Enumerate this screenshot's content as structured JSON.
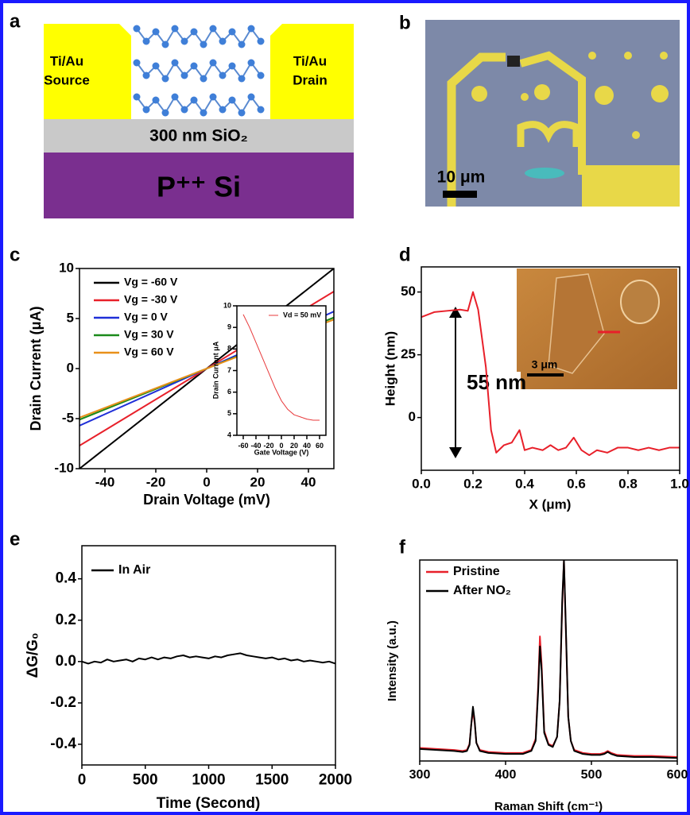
{
  "panels": [
    "a",
    "b",
    "c",
    "d",
    "e",
    "f"
  ],
  "diagram": {
    "source": [
      "Ti/Au",
      "Source"
    ],
    "drain": [
      "Ti/Au",
      "Drain"
    ],
    "oxide": "300 nm SiO₂",
    "substrate": "P⁺⁺ Si"
  },
  "image_b": {
    "scale_bar": "10 μm"
  },
  "chart_data": [
    {
      "type": "line",
      "x_label": "Drain Voltage (mV)",
      "y_label": "Drain Current (μA)",
      "x": [
        -50,
        50
      ],
      "xlim": [
        -50,
        50
      ],
      "ylim": [
        -10,
        10
      ],
      "xticks": [
        -40,
        -20,
        0,
        20,
        40
      ],
      "yticks": [
        -10,
        -5,
        0,
        5,
        10
      ],
      "legend": "upper left",
      "series": [
        {
          "name": "Vg = -60 V",
          "color": "#000000",
          "values": [
            -10,
            10
          ]
        },
        {
          "name": "Vg = -30 V",
          "color": "#e8202a",
          "values": [
            -7.7,
            7.7
          ]
        },
        {
          "name": "Vg = 0 V",
          "color": "#1f2fd8",
          "values": [
            -5.7,
            5.7
          ]
        },
        {
          "name": "Vg = 30 V",
          "color": "#1a8a1a",
          "values": [
            -5.1,
            5.1
          ]
        },
        {
          "name": "Vg = 60 V",
          "color": "#e8901a",
          "values": [
            -4.9,
            4.9
          ]
        }
      ]
    },
    {
      "type": "line",
      "x_label": "Gate Voltage (V)",
      "y_label": "Drain Current μA",
      "x": [
        -60,
        -50,
        -40,
        -30,
        -20,
        -10,
        0,
        10,
        20,
        30,
        40,
        50,
        60
      ],
      "xlim": [
        -70,
        70
      ],
      "ylim": [
        4,
        10
      ],
      "xticks": [
        -60,
        -40,
        -20,
        0,
        20,
        40,
        60
      ],
      "yticks": [
        4,
        5,
        6,
        7,
        8,
        9,
        10
      ],
      "legend": "upper right",
      "series": [
        {
          "name": "Vd = 50 mV",
          "color": "#e8393b",
          "values": [
            9.6,
            9.0,
            8.3,
            7.6,
            6.9,
            6.2,
            5.6,
            5.2,
            4.95,
            4.85,
            4.75,
            4.7,
            4.7
          ]
        }
      ]
    },
    {
      "type": "line",
      "x_label": "X (μm)",
      "y_label": "Height (nm)",
      "x": [
        0,
        0.05,
        0.1,
        0.15,
        0.18,
        0.2,
        0.22,
        0.25,
        0.27,
        0.29,
        0.32,
        0.35,
        0.38,
        0.4,
        0.43,
        0.47,
        0.5,
        0.53,
        0.56,
        0.59,
        0.62,
        0.65,
        0.68,
        0.72,
        0.76,
        0.8,
        0.84,
        0.88,
        0.92,
        0.96,
        1.0
      ],
      "xlim": [
        0,
        1
      ],
      "ylim": [
        -21,
        60
      ],
      "xticks": [
        {
          "value": 0,
          "label": "0.0"
        },
        0.2,
        0.4,
        0.6,
        0.8,
        {
          "value": 1,
          "label": "1.0"
        }
      ],
      "yticks": [
        0,
        25,
        50
      ],
      "annotation": "55 nm",
      "inset_scale": "3 μm",
      "series": [
        {
          "color": "#e8202a",
          "values": [
            40,
            42,
            42.5,
            43,
            42.5,
            50,
            43,
            20,
            -5,
            -14,
            -11,
            -10,
            -5,
            -13,
            -12,
            -13,
            -11,
            -13,
            -12,
            -8,
            -13,
            -15,
            -13,
            -14,
            -12,
            -12,
            -13,
            -12,
            -13,
            -12,
            -12
          ]
        }
      ]
    },
    {
      "type": "line",
      "x_label": "Time (Second)",
      "y_label": "ΔG/G₀",
      "x": [
        0,
        50,
        100,
        150,
        200,
        250,
        300,
        350,
        400,
        450,
        500,
        550,
        600,
        650,
        700,
        750,
        800,
        850,
        900,
        950,
        1000,
        1050,
        1100,
        1150,
        1200,
        1250,
        1300,
        1350,
        1400,
        1450,
        1500,
        1550,
        1600,
        1650,
        1700,
        1750,
        1800,
        1850,
        1900,
        1950,
        2000
      ],
      "xlim": [
        0,
        2000
      ],
      "ylim": [
        -0.5,
        0.56
      ],
      "xticks": [
        0,
        500,
        1000,
        1500,
        2000
      ],
      "yticks": [
        -0.4,
        -0.2,
        {
          "value": 0,
          "label": "0.0"
        },
        0.2,
        0.4
      ],
      "legend": "upper left",
      "series": [
        {
          "name": "In Air",
          "color": "#000000",
          "values": [
            0.0,
            -0.01,
            0.0,
            -0.005,
            0.01,
            0.0,
            0.005,
            0.01,
            0.0,
            0.015,
            0.01,
            0.02,
            0.01,
            0.02,
            0.015,
            0.025,
            0.03,
            0.02,
            0.025,
            0.02,
            0.015,
            0.025,
            0.02,
            0.03,
            0.035,
            0.04,
            0.03,
            0.025,
            0.02,
            0.015,
            0.02,
            0.01,
            0.015,
            0.005,
            0.01,
            0.0,
            0.005,
            0.0,
            -0.005,
            0.0,
            -0.01
          ]
        }
      ]
    },
    {
      "type": "line",
      "x_label": "Raman Shift (cm⁻¹)",
      "y_label": "Intensity (a.u.)",
      "x": [
        300,
        320,
        340,
        350,
        355,
        358,
        360,
        362,
        364,
        366,
        370,
        380,
        400,
        420,
        430,
        435,
        438,
        440,
        442,
        445,
        450,
        455,
        460,
        463,
        466,
        468,
        470,
        473,
        476,
        480,
        490,
        500,
        510,
        515,
        519,
        523,
        530,
        550,
        570,
        600
      ],
      "xlim": [
        300,
        600
      ],
      "ylim": [
        0,
        100
      ],
      "xticks": [
        300,
        400,
        500,
        600
      ],
      "legend": "upper left",
      "series": [
        {
          "name": "Pristine",
          "color": "#e8202a",
          "values": [
            6.5,
            6,
            5.5,
            5,
            5.5,
            8.5,
            18,
            25,
            19,
            9,
            5.5,
            4.5,
            4,
            4,
            5.5,
            11,
            38,
            62,
            48,
            15,
            8.5,
            7.5,
            12,
            30,
            78,
            100,
            68,
            22,
            10,
            5.5,
            4,
            3.5,
            3.5,
            4,
            5,
            4,
            3,
            2.5,
            2.5,
            2
          ]
        },
        {
          "name": "After NO₂",
          "color": "#000000",
          "values": [
            6,
            5.5,
            5,
            4.5,
            5,
            8,
            18,
            27,
            20,
            9,
            5,
            4,
            3.5,
            3.5,
            5,
            10,
            35,
            57,
            45,
            14,
            8,
            7,
            12,
            30,
            80,
            100,
            70,
            22,
            10,
            5,
            3.5,
            3,
            3,
            3.5,
            4.5,
            3.5,
            2.5,
            2,
            2,
            1.5
          ]
        }
      ]
    }
  ]
}
